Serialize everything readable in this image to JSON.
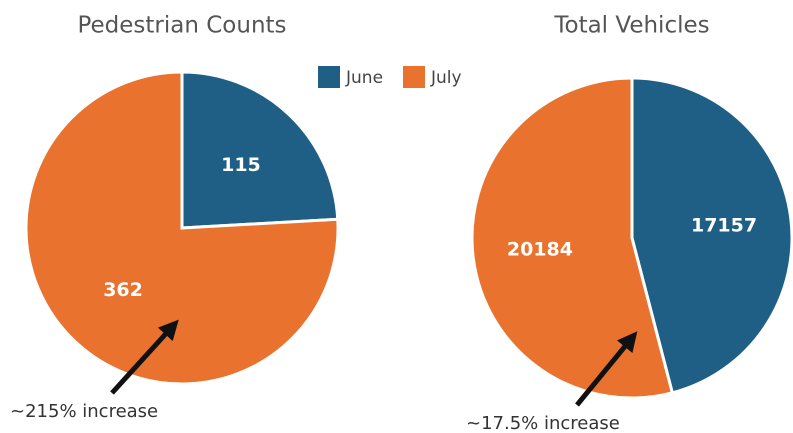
{
  "chart_data": [
    {
      "type": "pie",
      "title": "Pedestrian Counts",
      "categories": [
        "June",
        "July"
      ],
      "values": [
        115,
        362
      ],
      "colors": [
        "#1f5f86",
        "#e8722e"
      ],
      "annotation": "~215% increase"
    },
    {
      "type": "pie",
      "title": "Total Vehicles",
      "categories": [
        "June",
        "July"
      ],
      "values": [
        17157,
        20184
      ],
      "colors": [
        "#1f5f86",
        "#e8722e"
      ],
      "annotation": "~17.5% increase"
    }
  ]
}
